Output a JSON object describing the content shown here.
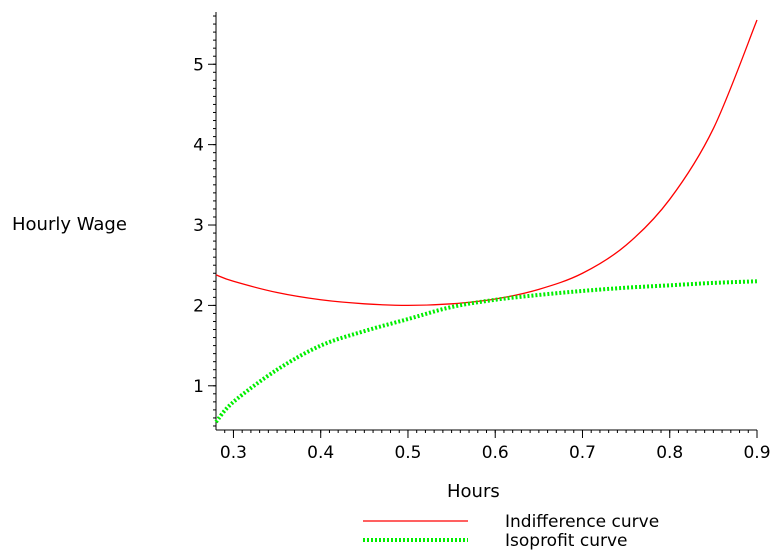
{
  "chart_data": {
    "type": "line",
    "title": "",
    "xlabel": "Hours",
    "ylabel": "Hourly Wage",
    "xlim": [
      0.28,
      0.9
    ],
    "ylim": [
      0.45,
      5.65
    ],
    "x_ticks": [
      0.3,
      0.4,
      0.5,
      0.6,
      0.7,
      0.8,
      0.9
    ],
    "x_tick_labels": [
      "0.3",
      "0.4",
      "0.5",
      "0.6",
      "0.7",
      "0.8",
      "0.9"
    ],
    "y_ticks": [
      1,
      2,
      3,
      4,
      5
    ],
    "y_tick_labels": [
      "1",
      "2",
      "3",
      "4",
      "5"
    ],
    "grid": false,
    "legend_position": "bottom",
    "series": [
      {
        "name": "Indifference curve",
        "color": "#ff0000",
        "style": "solid",
        "x": [
          0.28,
          0.3,
          0.35,
          0.4,
          0.45,
          0.5,
          0.55,
          0.6,
          0.65,
          0.7,
          0.75,
          0.8,
          0.85,
          0.9
        ],
        "y": [
          2.38,
          2.3,
          2.16,
          2.07,
          2.02,
          2.0,
          2.02,
          2.08,
          2.2,
          2.4,
          2.75,
          3.32,
          4.2,
          5.55
        ]
      },
      {
        "name": "Isoprofit curve",
        "color": "#00ee00",
        "style": "dotted",
        "x": [
          0.28,
          0.3,
          0.35,
          0.4,
          0.45,
          0.5,
          0.55,
          0.6,
          0.65,
          0.7,
          0.75,
          0.8,
          0.85,
          0.9
        ],
        "y": [
          0.55,
          0.8,
          1.2,
          1.5,
          1.68,
          1.83,
          1.98,
          2.07,
          2.13,
          2.18,
          2.22,
          2.25,
          2.28,
          2.3
        ]
      }
    ]
  }
}
